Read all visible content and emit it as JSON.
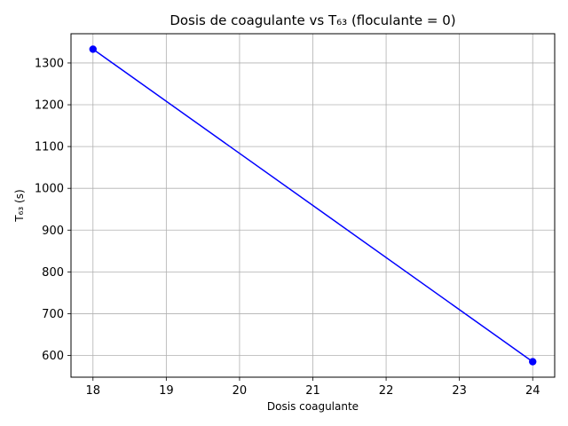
{
  "chart_data": {
    "type": "line",
    "title": "Dosis de coagulante vs T₆₃ (floculante = 0)",
    "xlabel": "Dosis coagulante",
    "ylabel": "T₆₃ (s)",
    "x": [
      18,
      24
    ],
    "series": [
      {
        "values": [
          1333,
          585
        ],
        "color": "#0000ff",
        "marker": "circle"
      }
    ],
    "xlim": [
      17.7,
      24.3
    ],
    "ylim": [
      548,
      1370
    ],
    "xticks": [
      18,
      19,
      20,
      21,
      22,
      23,
      24
    ],
    "yticks": [
      600,
      700,
      800,
      900,
      1000,
      1100,
      1200,
      1300
    ],
    "grid": true,
    "legend": "none"
  }
}
